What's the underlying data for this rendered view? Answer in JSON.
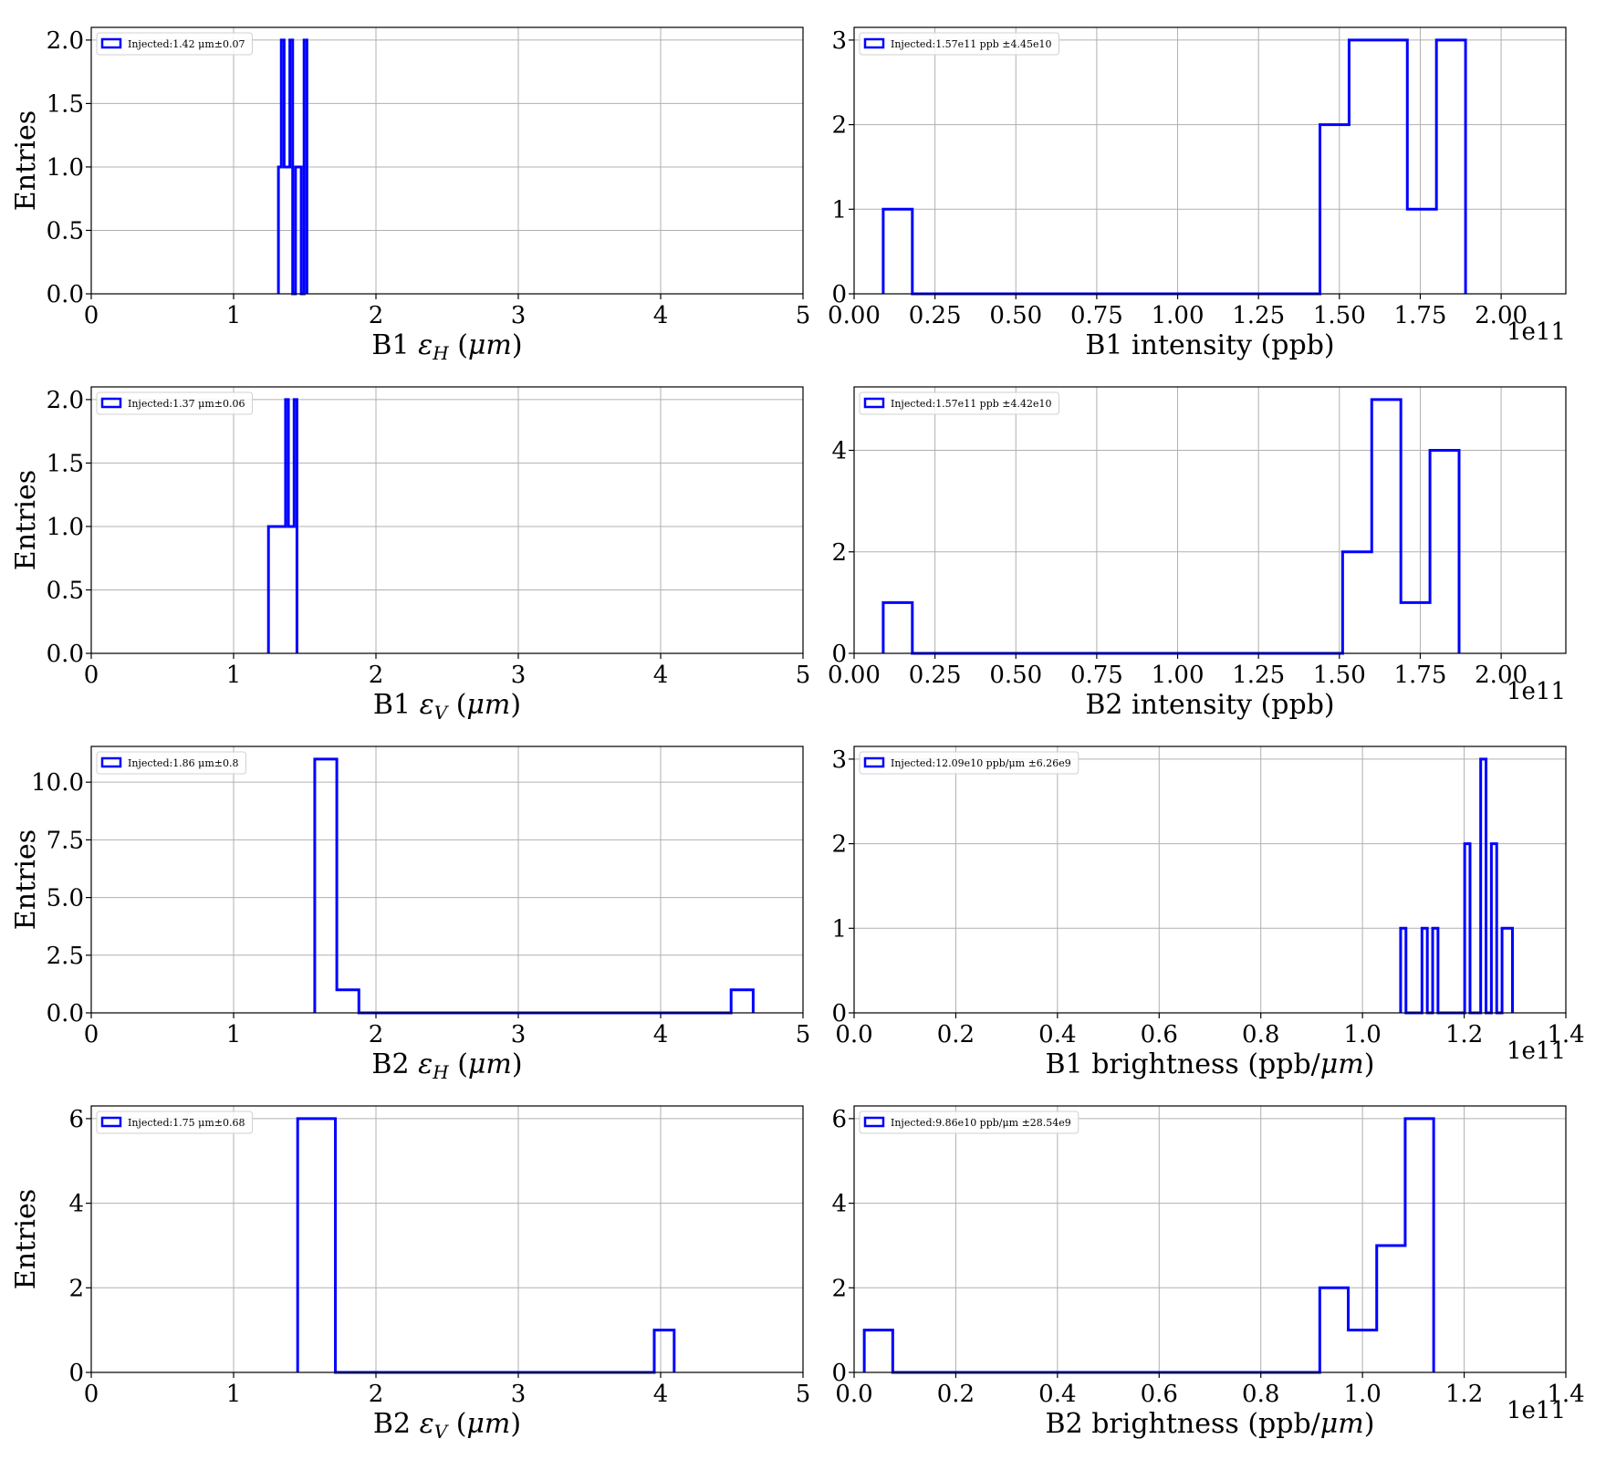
{
  "chart_data": [
    {
      "type": "histogram",
      "xlabel": {
        "pre": "B1 ",
        "sym": "ε",
        "sub": "H",
        "post": " (",
        "unit": "μm",
        "end": ")"
      },
      "ylabel": "Entries",
      "xlim": [
        0,
        5
      ],
      "ylim": [
        0,
        2.1
      ],
      "xticks": [
        "0",
        "1",
        "2",
        "3",
        "4",
        "5"
      ],
      "xtick_values": [
        0,
        1,
        2,
        3,
        4,
        5
      ],
      "yticks": [
        "0.0",
        "0.5",
        "1.0",
        "1.5",
        "2.0"
      ],
      "ytick_values": [
        0,
        0.5,
        1,
        1.5,
        2
      ],
      "offset_label": "",
      "legend": "Injected:1.42 μm±0.07",
      "grid": true,
      "legend_position": "upper-left",
      "bin_edges": [
        1.315,
        1.335,
        1.355,
        1.375,
        1.395,
        1.415,
        1.435,
        1.455,
        1.475,
        1.495,
        1.515
      ],
      "counts": [
        1,
        2,
        1,
        1,
        2,
        0,
        1,
        1,
        0,
        2
      ]
    },
    {
      "type": "histogram",
      "xlabel": {
        "pre": "B1 intensity (ppb)"
      },
      "ylabel": "",
      "xlim": [
        0,
        2.2
      ],
      "ylim": [
        0,
        3.15
      ],
      "xticks": [
        "0.00",
        "0.25",
        "0.50",
        "0.75",
        "1.00",
        "1.25",
        "1.50",
        "1.75",
        "2.00"
      ],
      "xtick_values": [
        0,
        0.25,
        0.5,
        0.75,
        1.0,
        1.25,
        1.5,
        1.75,
        2.0
      ],
      "yticks": [
        "0",
        "1",
        "2",
        "3"
      ],
      "ytick_values": [
        0,
        1,
        2,
        3
      ],
      "offset_label": "1e11",
      "legend": "Injected:1.57e11 ppb ±4.45e10",
      "grid": true,
      "legend_position": "upper-left",
      "bin_edges": [
        0.09,
        0.18,
        0.27,
        0.36,
        0.45,
        0.54,
        0.63,
        0.72,
        0.81,
        0.9,
        0.99,
        1.08,
        1.17,
        1.26,
        1.35,
        1.44,
        1.53,
        1.62,
        1.71,
        1.8,
        1.89
      ],
      "counts": [
        1,
        0,
        0,
        0,
        0,
        0,
        0,
        0,
        0,
        0,
        0,
        0,
        0,
        0,
        0,
        2,
        3,
        3,
        1,
        3
      ]
    },
    {
      "type": "histogram",
      "xlabel": {
        "pre": "B1 ",
        "sym": "ε",
        "sub": "V",
        "post": " (",
        "unit": "μm",
        "end": ")"
      },
      "ylabel": "Entries",
      "xlim": [
        0,
        5
      ],
      "ylim": [
        0,
        2.1
      ],
      "xticks": [
        "0",
        "1",
        "2",
        "3",
        "4",
        "5"
      ],
      "xtick_values": [
        0,
        1,
        2,
        3,
        4,
        5
      ],
      "yticks": [
        "0.0",
        "0.5",
        "1.0",
        "1.5",
        "2.0"
      ],
      "ytick_values": [
        0,
        0.5,
        1,
        1.5,
        2
      ],
      "offset_label": "",
      "legend": "Injected:1.37 μm±0.06",
      "grid": true,
      "legend_position": "upper-left",
      "bin_edges": [
        1.245,
        1.265,
        1.285,
        1.305,
        1.325,
        1.345,
        1.365,
        1.385,
        1.405,
        1.425,
        1.445
      ],
      "counts": [
        1,
        1,
        1,
        1,
        1,
        1,
        2,
        1,
        1,
        2
      ]
    },
    {
      "type": "histogram",
      "xlabel": {
        "pre": "B2 intensity (ppb)"
      },
      "ylabel": "",
      "xlim": [
        0,
        2.2
      ],
      "ylim": [
        0,
        5.25
      ],
      "xticks": [
        "0.00",
        "0.25",
        "0.50",
        "0.75",
        "1.00",
        "1.25",
        "1.50",
        "1.75",
        "2.00"
      ],
      "xtick_values": [
        0,
        0.25,
        0.5,
        0.75,
        1.0,
        1.25,
        1.5,
        1.75,
        2.0
      ],
      "yticks": [
        "0",
        "2",
        "4"
      ],
      "ytick_values": [
        0,
        2,
        4
      ],
      "offset_label": "1e11",
      "legend": "Injected:1.57e11 ppb ±4.42e10",
      "grid": true,
      "legend_position": "upper-left",
      "bin_edges": [
        0.09,
        0.18,
        0.27,
        0.36,
        0.45,
        0.54,
        0.63,
        0.72,
        0.81,
        0.9,
        0.99,
        1.08,
        1.17,
        1.26,
        1.35,
        1.44,
        1.51,
        1.6,
        1.69,
        1.78,
        1.87
      ],
      "counts": [
        1,
        0,
        0,
        0,
        0,
        0,
        0,
        0,
        0,
        0,
        0,
        0,
        0,
        0,
        0,
        0,
        2,
        5,
        1,
        4
      ]
    },
    {
      "type": "histogram",
      "xlabel": {
        "pre": "B2 ",
        "sym": "ε",
        "sub": "H",
        "post": " (",
        "unit": "μm",
        "end": ")"
      },
      "ylabel": "Entries",
      "xlim": [
        0,
        5
      ],
      "ylim": [
        0,
        11.55
      ],
      "xticks": [
        "0",
        "1",
        "2",
        "3",
        "4",
        "5"
      ],
      "xtick_values": [
        0,
        1,
        2,
        3,
        4,
        5
      ],
      "yticks": [
        "0.0",
        "2.5",
        "5.0",
        "7.5",
        "10.0"
      ],
      "ytick_values": [
        0,
        2.5,
        5,
        7.5,
        10
      ],
      "offset_label": "",
      "legend": "Injected:1.86 μm±0.8",
      "grid": true,
      "legend_position": "upper-left",
      "bin_edges": [
        1.57,
        1.725,
        1.88,
        2.035,
        2.19,
        2.345,
        2.5,
        2.655,
        2.81,
        2.965,
        3.12,
        3.275,
        3.43,
        3.585,
        3.74,
        3.895,
        4.05,
        4.205,
        4.36,
        4.495,
        4.65
      ],
      "counts": [
        11,
        1,
        0,
        0,
        0,
        0,
        0,
        0,
        0,
        0,
        0,
        0,
        0,
        0,
        0,
        0,
        0,
        0,
        0,
        1
      ]
    },
    {
      "type": "histogram",
      "xlabel": {
        "pre": "B1 brightness (ppb/",
        "unit": "μm",
        "end": ")"
      },
      "ylabel": "",
      "xlim": [
        0,
        1.4
      ],
      "ylim": [
        0,
        3.15
      ],
      "xticks": [
        "0.0",
        "0.2",
        "0.4",
        "0.6",
        "0.8",
        "1.0",
        "1.2",
        "1.4"
      ],
      "xtick_values": [
        0,
        0.2,
        0.4,
        0.6,
        0.8,
        1.0,
        1.2,
        1.4
      ],
      "yticks": [
        "0",
        "1",
        "2",
        "3"
      ],
      "ytick_values": [
        0,
        1,
        2,
        3
      ],
      "offset_label": "1e11",
      "legend": "Injected:12.09e10 ppb/μm ±6.26e9",
      "grid": true,
      "legend_position": "upper-left",
      "bin_edges": [
        1.075,
        1.0855,
        1.096,
        1.1065,
        1.117,
        1.1275,
        1.138,
        1.1485,
        1.159,
        1.1695,
        1.18,
        1.1905,
        1.201,
        1.2115,
        1.222,
        1.2325,
        1.243,
        1.2535,
        1.264,
        1.2745,
        1.295
      ],
      "counts": [
        1,
        0,
        0,
        0,
        1,
        0,
        1,
        0,
        0,
        0,
        0,
        0,
        2,
        0,
        0,
        3,
        0,
        2,
        0,
        1
      ]
    },
    {
      "type": "histogram",
      "xlabel": {
        "pre": "B2 ",
        "sym": "ε",
        "sub": "V",
        "post": " (",
        "unit": "μm",
        "end": ")"
      },
      "ylabel": "Entries",
      "xlim": [
        0,
        5
      ],
      "ylim": [
        0,
        6.3
      ],
      "xticks": [
        "0",
        "1",
        "2",
        "3",
        "4",
        "5"
      ],
      "xtick_values": [
        0,
        1,
        2,
        3,
        4,
        5
      ],
      "yticks": [
        "0",
        "2",
        "4",
        "6"
      ],
      "ytick_values": [
        0,
        2,
        4,
        6
      ],
      "offset_label": "",
      "legend": "Injected:1.75 μm±0.68",
      "grid": true,
      "legend_position": "upper-left",
      "bin_edges": [
        1.45,
        1.715,
        1.98,
        2.245,
        2.51,
        2.775,
        3.04,
        3.305,
        3.57,
        3.835,
        3.955,
        4.095
      ],
      "counts": [
        6,
        0,
        0,
        0,
        0,
        0,
        0,
        0,
        0,
        0,
        1
      ]
    },
    {
      "type": "histogram",
      "xlabel": {
        "pre": "B2 brightness (ppb/",
        "unit": "μm",
        "end": ")"
      },
      "ylabel": "",
      "xlim": [
        0,
        1.4
      ],
      "ylim": [
        0,
        6.3
      ],
      "xticks": [
        "0.0",
        "0.2",
        "0.4",
        "0.6",
        "0.8",
        "1.0",
        "1.2",
        "1.4"
      ],
      "xtick_values": [
        0,
        0.2,
        0.4,
        0.6,
        0.8,
        1.0,
        1.2,
        1.4
      ],
      "yticks": [
        "0",
        "2",
        "4",
        "6"
      ],
      "ytick_values": [
        0,
        2,
        4,
        6
      ],
      "offset_label": "1e11",
      "legend": "Injected:9.86e10 ppb/μm ±28.54e9",
      "grid": true,
      "legend_position": "upper-left",
      "bin_edges": [
        0.02,
        0.076,
        0.132,
        0.188,
        0.244,
        0.3,
        0.356,
        0.412,
        0.468,
        0.524,
        0.58,
        0.636,
        0.692,
        0.748,
        0.804,
        0.86,
        0.916,
        0.972,
        1.028,
        1.084,
        1.14
      ],
      "counts": [
        1,
        0,
        0,
        0,
        0,
        0,
        0,
        0,
        0,
        0,
        0,
        0,
        0,
        0,
        0,
        0,
        2,
        1,
        3,
        6
      ]
    }
  ],
  "colors": {
    "series": "#0000ff",
    "grid": "#b0b0b0",
    "axes": "#000000"
  }
}
